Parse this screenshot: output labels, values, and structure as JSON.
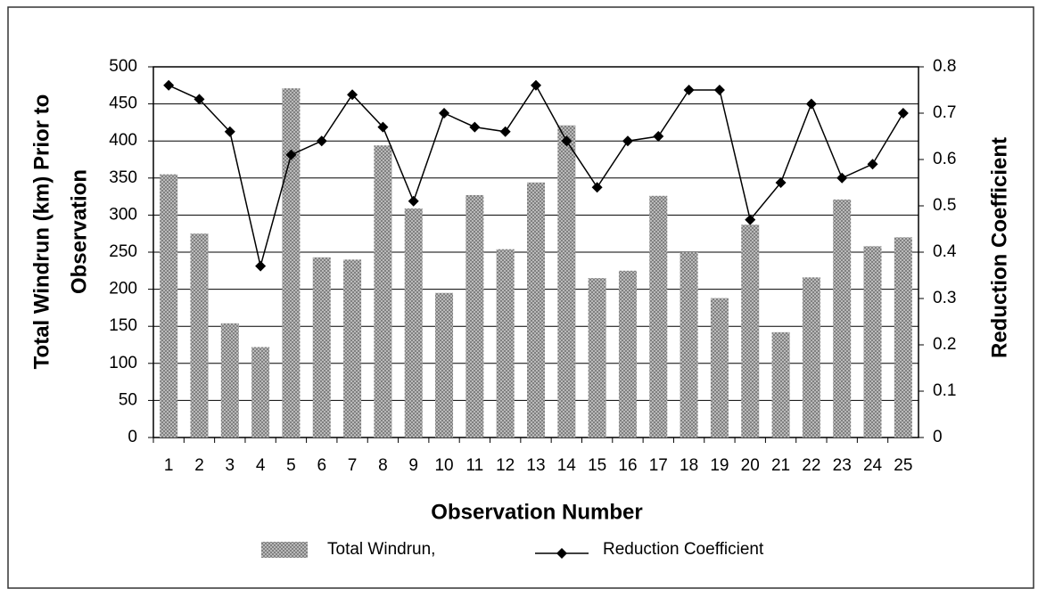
{
  "chart_data": {
    "type": "bar_line",
    "categories": [
      "1",
      "2",
      "3",
      "4",
      "5",
      "6",
      "7",
      "8",
      "9",
      "10",
      "11",
      "12",
      "13",
      "14",
      "15",
      "16",
      "17",
      "18",
      "19",
      "20",
      "21",
      "22",
      "23",
      "24",
      "25"
    ],
    "series": [
      {
        "name": "Total Windrun,",
        "color": "#7a7a7a",
        "type": "bar",
        "values": [
          355,
          275,
          154,
          122,
          471,
          243,
          240,
          394,
          309,
          195,
          327,
          254,
          344,
          421,
          215,
          225,
          326,
          250,
          188,
          287,
          142,
          216,
          321,
          258,
          270
        ]
      },
      {
        "name": "Reduction Coefficient",
        "color": "#000000",
        "type": "line",
        "axis": "y2",
        "values": [
          0.76,
          0.73,
          0.66,
          0.37,
          0.61,
          0.64,
          0.74,
          0.67,
          0.51,
          0.7,
          0.67,
          0.66,
          0.76,
          0.64,
          0.54,
          0.64,
          0.65,
          0.75,
          0.75,
          0.47,
          0.55,
          0.72,
          0.56,
          0.59,
          0.7
        ]
      }
    ],
    "xlabel": "Observation Number",
    "ylabel": [
      "Total Windrun (km) Prior to",
      "Observation"
    ],
    "y2label": "Reduction Coefficient",
    "ylim": [
      0,
      500
    ],
    "yticks": [
      0,
      50,
      100,
      150,
      200,
      250,
      300,
      350,
      400,
      450,
      500
    ],
    "y2lim": [
      0,
      0.8
    ],
    "y2ticks": [
      0,
      0.1,
      0.2,
      0.3,
      0.4,
      0.5,
      0.6,
      0.7,
      0.8
    ],
    "grid": true
  }
}
